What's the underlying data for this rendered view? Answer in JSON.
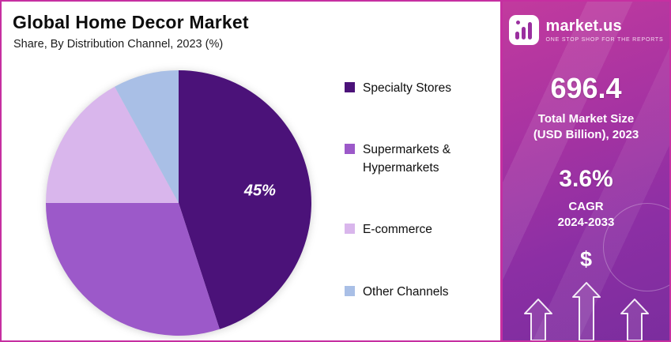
{
  "page": {
    "title": "Global Home Decor Market",
    "subtitle": "Share, By Distribution Channel, 2023 (%)"
  },
  "chart_data": {
    "type": "pie",
    "title": "Global Home Decor Market",
    "subtitle": "Share, By Distribution Channel, 2023 (%)",
    "unit": "%",
    "labels": [
      "Specialty Stores",
      "Supermarkets & Hypermarkets",
      "E-commerce",
      "Other Channels"
    ],
    "values": [
      45,
      30,
      17,
      8
    ],
    "colors": [
      "#4b1279",
      "#9c59c9",
      "#d9b6ec",
      "#a9bfe6"
    ],
    "start_angle_deg": 0,
    "direction": "clockwise",
    "legend_position": "right",
    "data_label": {
      "slice": "Specialty Stores",
      "text": "45%"
    }
  },
  "legend": {
    "items": [
      {
        "label": "Specialty Stores",
        "color": "#4b1279"
      },
      {
        "label": "Supermarkets & Hypermarkets",
        "color": "#9c59c9"
      },
      {
        "label": "E-commerce",
        "color": "#d9b6ec"
      },
      {
        "label": "Other Channels",
        "color": "#a9bfe6"
      }
    ]
  },
  "sidebar": {
    "brand": {
      "name": "market.us",
      "tagline": "ONE STOP SHOP FOR THE REPORTS"
    },
    "market_size": {
      "value": "696.4",
      "label_line1": "Total Market Size",
      "label_line2": "(USD Billion), 2023"
    },
    "cagr": {
      "value": "3.6%",
      "label_line1": "CAGR",
      "label_line2": "2024-2033"
    },
    "dollar_symbol": "$"
  },
  "colors": {
    "frame_border": "#c62fa1",
    "sidebar_gradient_top": "#c23a9e",
    "sidebar_gradient_bottom": "#7b2d9e",
    "text_dark": "#0d0d0d",
    "text_light": "#ffffff"
  }
}
